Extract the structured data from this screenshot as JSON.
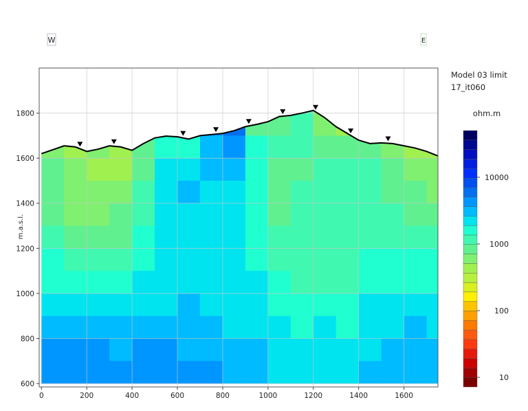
{
  "orientation": {
    "west": "W",
    "east": "E"
  },
  "legend": {
    "title_line1": "Model 03 limit",
    "title_line2": "17_it060",
    "unit": "ohm.m",
    "ticks": [
      {
        "value": 10,
        "label": "10"
      },
      {
        "value": 100,
        "label": "100"
      },
      {
        "value": 1000,
        "label": "1000"
      },
      {
        "value": 10000,
        "label": "10000"
      }
    ],
    "log_range": [
      0.856,
      4.7
    ],
    "colors": [
      "#7a0000",
      "#a00000",
      "#cc0000",
      "#e61a0a",
      "#ff3a10",
      "#ff5a10",
      "#ff7a00",
      "#ffa000",
      "#ffc400",
      "#fff000",
      "#d8f020",
      "#b8f040",
      "#a0f050",
      "#80f070",
      "#60f090",
      "#40f8b0",
      "#20ffd0",
      "#00e4f0",
      "#00bbff",
      "#0096ff",
      "#0070f0",
      "#0050f0",
      "#0030ff",
      "#0020e0",
      "#0010c0",
      "#000a90",
      "#000060"
    ]
  },
  "chart_data": {
    "type": "heatmap",
    "ylabel": "m.a.s.l.",
    "xlabel": "",
    "xlim": [
      -10,
      1750
    ],
    "ylim": [
      585,
      2000
    ],
    "grid": true,
    "xticks": [
      0,
      200,
      400,
      600,
      800,
      1000,
      1200,
      1400,
      1600
    ],
    "yticks": [
      600,
      800,
      1000,
      1200,
      1400,
      1600,
      1800
    ],
    "cell_x_edges": [
      0,
      100,
      200,
      300,
      400,
      500,
      600,
      700,
      800,
      900,
      1000,
      1100,
      1200,
      1300,
      1400,
      1500,
      1600,
      1700,
      1800
    ],
    "cell_y_edges_top_down": [
      1900,
      1800,
      1700,
      1600,
      1500,
      1400,
      1300,
      1200,
      1100,
      1000,
      900,
      800,
      700,
      600
    ],
    "resistivity_ohm_m_columns": [
      [
        600,
        600,
        600,
        850,
        850,
        850,
        1200,
        1600,
        1600,
        2300,
        3100,
        4400,
        4400
      ],
      [
        440,
        440,
        440,
        600,
        600,
        600,
        850,
        1200,
        1600,
        2300,
        3100,
        4400,
        4400
      ],
      [
        440,
        440,
        600,
        440,
        600,
        600,
        850,
        1200,
        1600,
        2300,
        3100,
        4400,
        4400
      ],
      [
        440,
        440,
        440,
        440,
        600,
        850,
        850,
        1200,
        1600,
        2300,
        3100,
        3100,
        4400
      ],
      [
        850,
        850,
        850,
        850,
        1200,
        1200,
        1600,
        1600,
        2300,
        2300,
        3100,
        4400,
        4400
      ],
      [
        1600,
        1600,
        1600,
        2300,
        2300,
        2300,
        2300,
        2300,
        2300,
        2300,
        3100,
        4400,
        4400
      ],
      [
        1600,
        1600,
        1600,
        2300,
        3100,
        2300,
        2300,
        2300,
        2300,
        3100,
        3100,
        3100,
        4400
      ],
      [
        4400,
        4400,
        3100,
        3100,
        2300,
        2300,
        2300,
        2300,
        2300,
        2300,
        3100,
        3100,
        4400
      ],
      [
        6000,
        6000,
        4400,
        3100,
        2300,
        2300,
        2300,
        2300,
        2300,
        2300,
        2300,
        3100,
        3100
      ],
      [
        850,
        850,
        1600,
        1600,
        1600,
        1600,
        1600,
        1600,
        2300,
        2300,
        2300,
        3100,
        3100
      ],
      [
        310,
        850,
        1200,
        850,
        850,
        850,
        1200,
        1200,
        1600,
        1600,
        2300,
        2300,
        2300
      ],
      [
        1200,
        1200,
        1200,
        850,
        1200,
        1200,
        1200,
        1200,
        1200,
        1600,
        1600,
        2300,
        2300
      ],
      [
        440,
        600,
        850,
        1200,
        1200,
        1200,
        1200,
        1200,
        1200,
        1600,
        2300,
        2300,
        2300
      ],
      [
        230,
        440,
        850,
        1200,
        1200,
        1200,
        1200,
        1200,
        1200,
        1600,
        1600,
        2300,
        2300
      ],
      [
        850,
        850,
        850,
        1200,
        1200,
        1200,
        1200,
        1600,
        1600,
        2300,
        2300,
        2300,
        3100
      ],
      [
        850,
        850,
        600,
        850,
        850,
        1200,
        1200,
        1600,
        1600,
        2300,
        2300,
        3100,
        3100
      ],
      [
        440,
        440,
        440,
        600,
        850,
        850,
        1200,
        1600,
        1600,
        2300,
        3100,
        3100,
        3100
      ],
      [
        440,
        440,
        440,
        600,
        600,
        850,
        1200,
        1600,
        1600,
        2300,
        2300,
        3100,
        3100
      ]
    ],
    "topography": [
      [
        0,
        1620
      ],
      [
        100,
        1655
      ],
      [
        150,
        1650
      ],
      [
        200,
        1630
      ],
      [
        250,
        1640
      ],
      [
        300,
        1655
      ],
      [
        350,
        1650
      ],
      [
        400,
        1635
      ],
      [
        450,
        1665
      ],
      [
        500,
        1690
      ],
      [
        550,
        1698
      ],
      [
        600,
        1695
      ],
      [
        650,
        1685
      ],
      [
        700,
        1700
      ],
      [
        750,
        1705
      ],
      [
        800,
        1710
      ],
      [
        850,
        1722
      ],
      [
        900,
        1740
      ],
      [
        950,
        1750
      ],
      [
        1000,
        1762
      ],
      [
        1050,
        1785
      ],
      [
        1100,
        1790
      ],
      [
        1150,
        1800
      ],
      [
        1200,
        1812
      ],
      [
        1250,
        1780
      ],
      [
        1300,
        1740
      ],
      [
        1350,
        1710
      ],
      [
        1400,
        1680
      ],
      [
        1450,
        1665
      ],
      [
        1500,
        1668
      ],
      [
        1550,
        1665
      ],
      [
        1600,
        1655
      ],
      [
        1650,
        1645
      ],
      [
        1700,
        1630
      ],
      [
        1750,
        1610
      ]
    ],
    "electrodes_x": [
      170,
      320,
      625,
      770,
      915,
      1065,
      1210,
      1365,
      1530
    ]
  }
}
